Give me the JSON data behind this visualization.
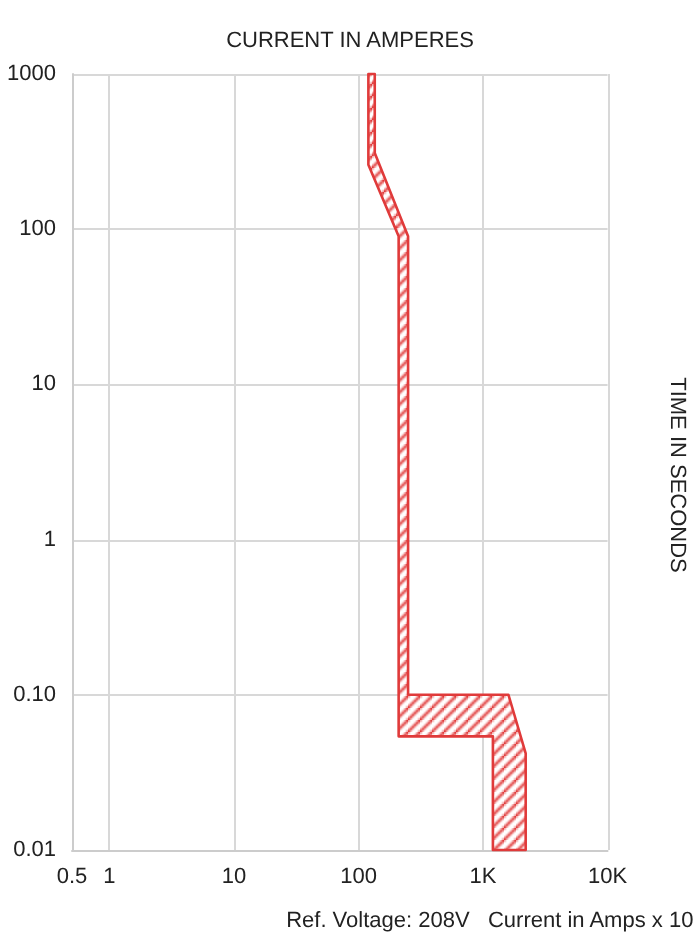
{
  "chart_data": {
    "type": "area",
    "title": "CURRENT IN AMPERES",
    "ylabel": "TIME IN SECONDS",
    "xlabel": "Ref. Voltage: 208V   Current in Amps x 10",
    "log": "xy",
    "grid": true,
    "line_style": "solid",
    "xlim": [
      0.5,
      10000
    ],
    "ylim": [
      0.01,
      1000
    ],
    "xticks": [
      0.5,
      1,
      10,
      100,
      {
        "value": 1000,
        "label": "1K"
      },
      {
        "value": 10000,
        "label": "10K"
      }
    ],
    "yticks": [
      0.01,
      {
        "value": 0.1,
        "label": "0.10"
      },
      1,
      10,
      100,
      1000
    ],
    "series": [
      {
        "color": "#e03a3a",
        "x": [
          120,
          120,
          210,
          210,
          1200,
          1200,
          2200,
          2200,
          1600,
          250,
          250,
          135,
          135
        ],
        "values": [
          1000,
          260,
          90,
          0.054,
          0.054,
          0.01,
          0.01,
          0.042,
          0.1,
          0.1,
          90,
          310,
          1000
        ]
      }
    ]
  }
}
